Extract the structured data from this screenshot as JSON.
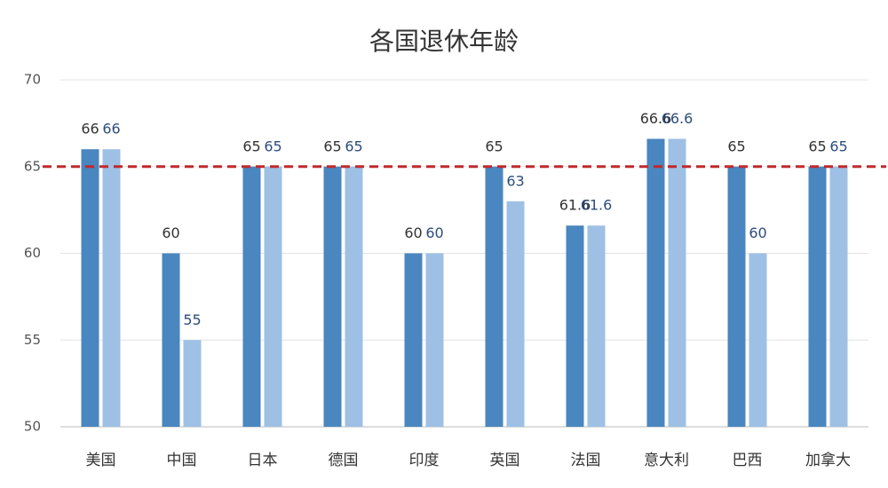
{
  "chart_data": {
    "type": "bar",
    "title": "各国退休年龄",
    "categories": [
      "美国",
      "中国",
      "日本",
      "德国",
      "印度",
      "英国",
      "法国",
      "意大利",
      "巴西",
      "加拿大"
    ],
    "series": [
      {
        "color": "#4a86bf",
        "label_color": "#333333",
        "values": [
          66,
          60,
          65,
          65,
          60,
          65,
          61.6,
          66.6,
          65,
          65
        ]
      },
      {
        "color": "#9ec0e4",
        "label_color": "#2c4d7c",
        "values": [
          66,
          55,
          65,
          65,
          60,
          63,
          61.6,
          66.6,
          60,
          65
        ]
      }
    ],
    "ylim": [
      50,
      70
    ],
    "yticks": [
      50,
      55,
      60,
      65,
      70
    ],
    "grid": true,
    "reference_line": {
      "value": 65,
      "color": "#c0282d"
    }
  }
}
